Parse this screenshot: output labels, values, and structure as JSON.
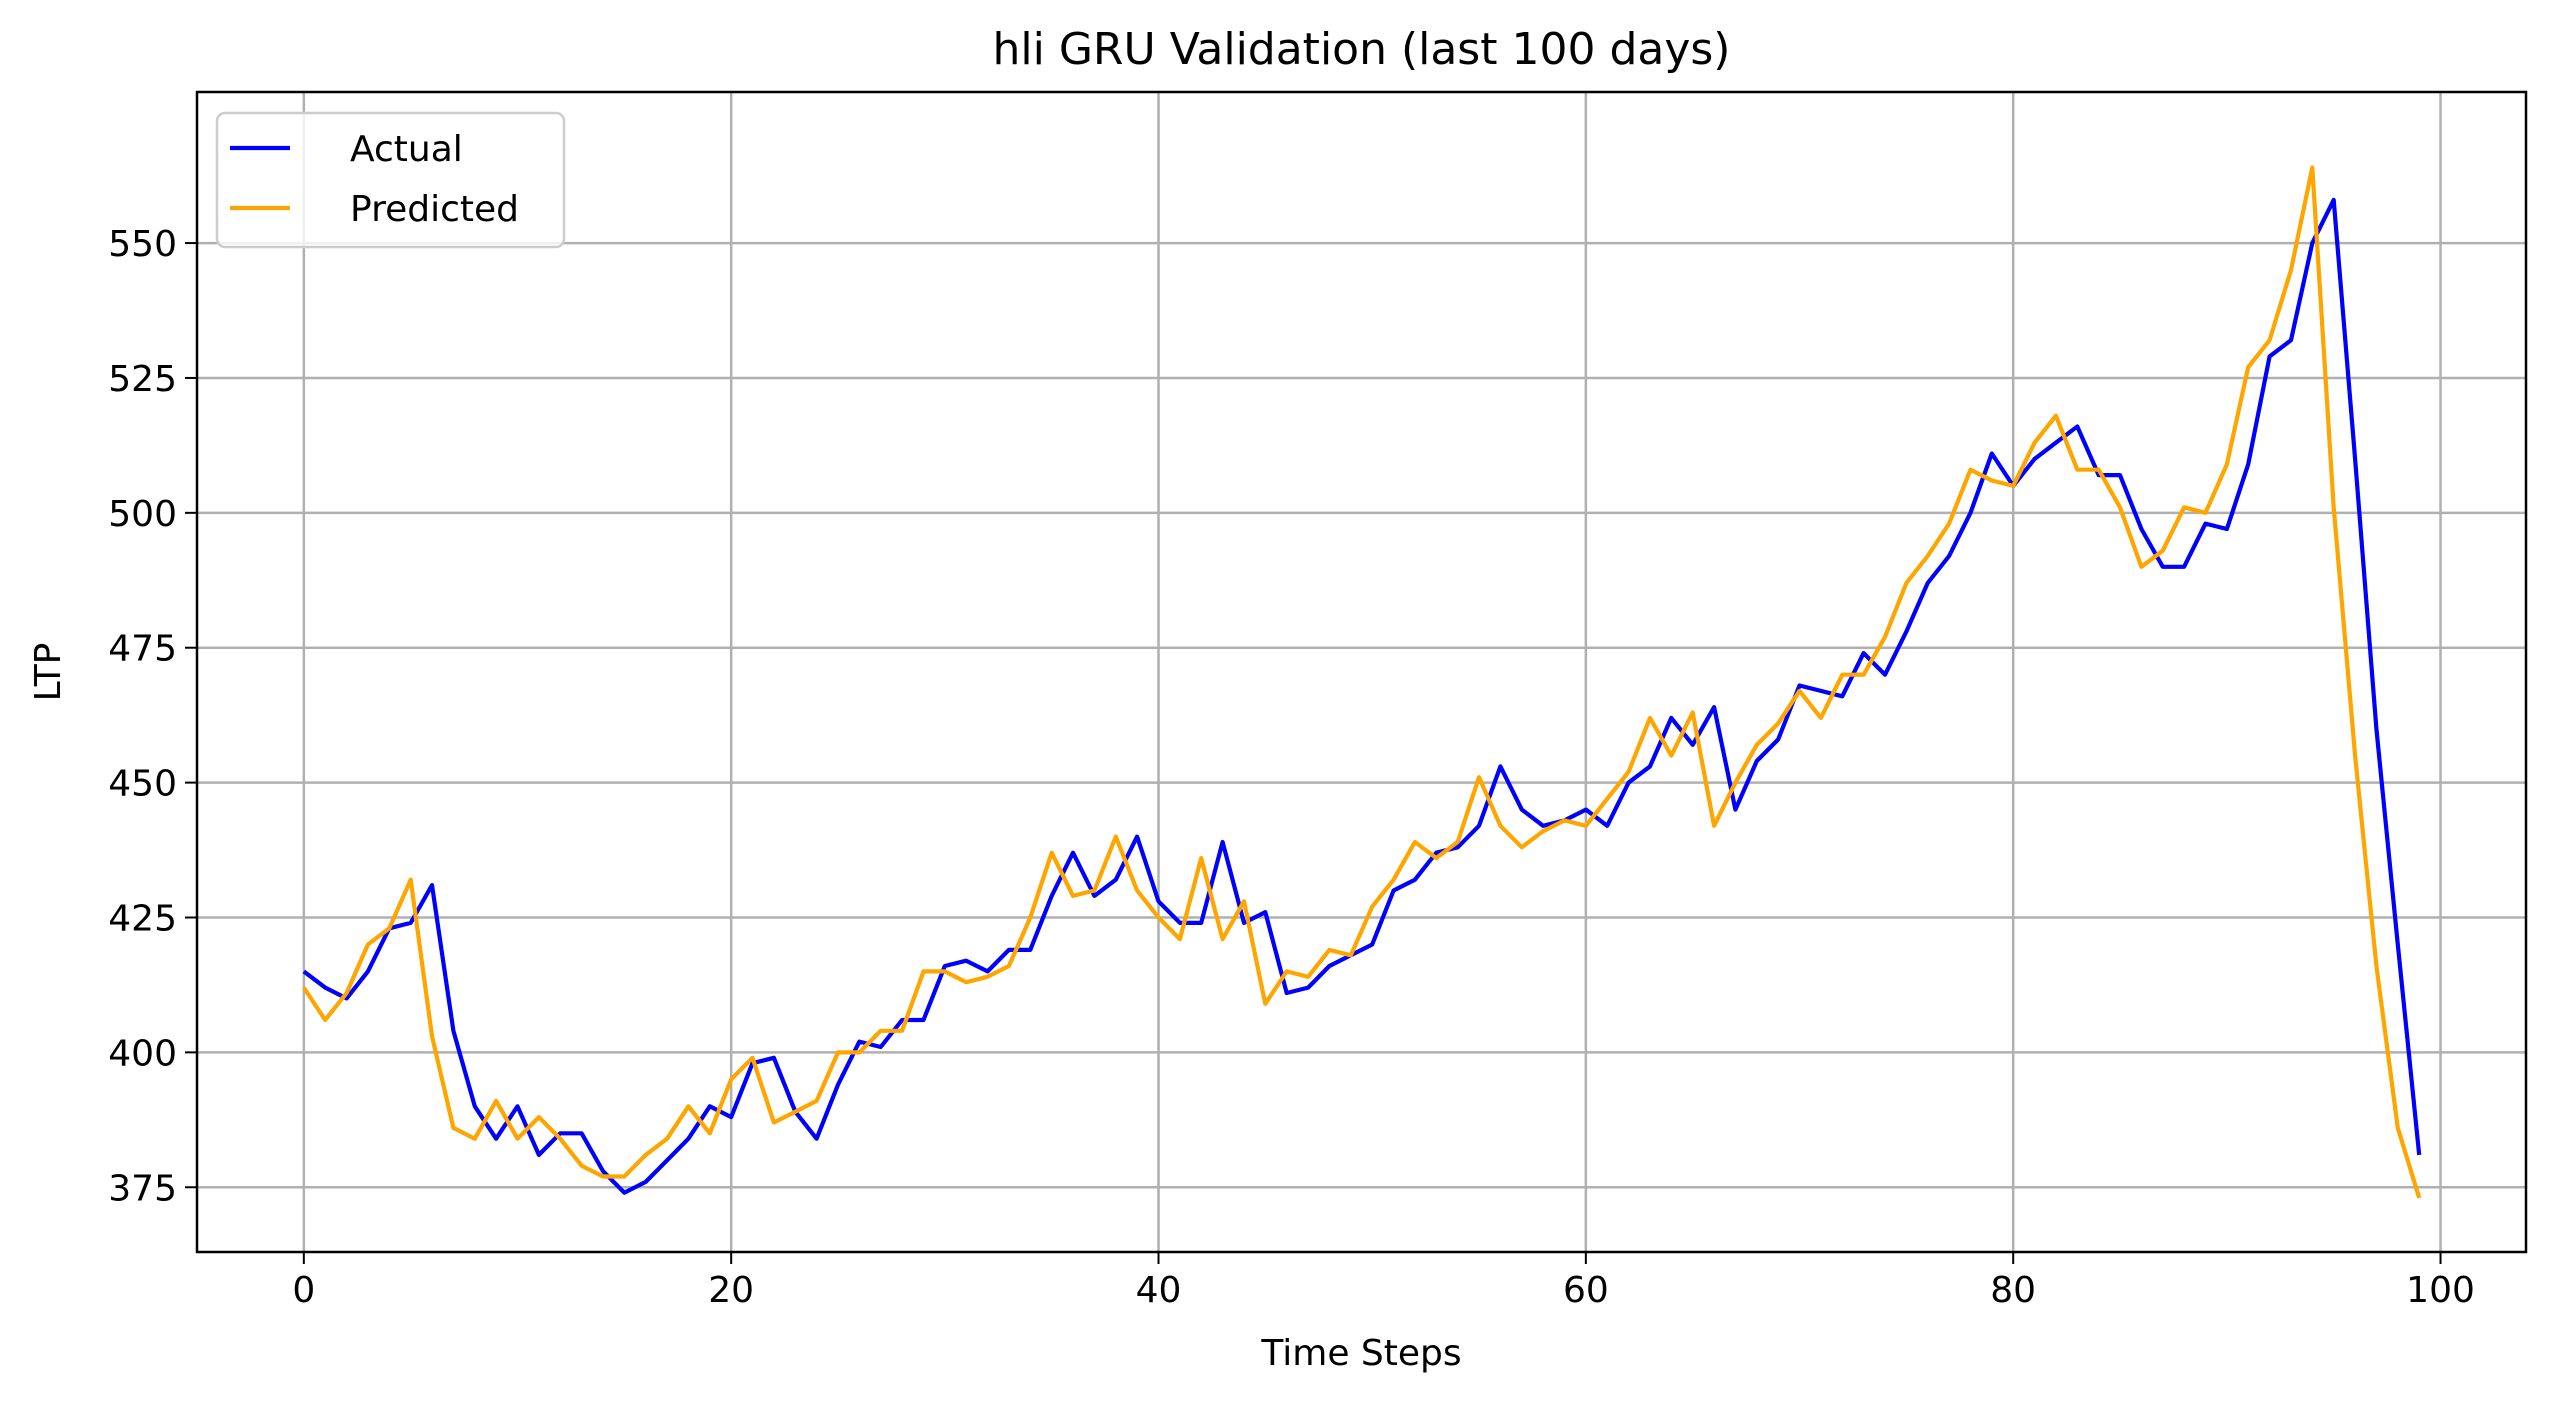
{
  "chart_data": {
    "type": "line",
    "title": "hli GRU Validation (last 100 days)",
    "xlabel": "Time Steps",
    "ylabel": "LTP",
    "xlim": [
      -5,
      104
    ],
    "ylim": [
      363,
      578
    ],
    "xticks": [
      0,
      20,
      40,
      60,
      80,
      100
    ],
    "yticks": [
      375,
      400,
      425,
      450,
      475,
      500,
      525,
      550
    ],
    "grid": true,
    "legend_position": "upper-left",
    "x": [
      0,
      1,
      2,
      3,
      4,
      5,
      6,
      7,
      8,
      9,
      10,
      11,
      12,
      13,
      14,
      15,
      16,
      17,
      18,
      19,
      20,
      21,
      22,
      23,
      24,
      25,
      26,
      27,
      28,
      29,
      30,
      31,
      32,
      33,
      34,
      35,
      36,
      37,
      38,
      39,
      40,
      41,
      42,
      43,
      44,
      45,
      46,
      47,
      48,
      49,
      50,
      51,
      52,
      53,
      54,
      55,
      56,
      57,
      58,
      59,
      60,
      61,
      62,
      63,
      64,
      65,
      66,
      67,
      68,
      69,
      70,
      71,
      72,
      73,
      74,
      75,
      76,
      77,
      78,
      79,
      80,
      81,
      82,
      83,
      84,
      85,
      86,
      87,
      88,
      89,
      90,
      91,
      92,
      93,
      94,
      95,
      96,
      97,
      98,
      99
    ],
    "series": [
      {
        "name": "Actual",
        "color": "#0000ff",
        "values": [
          415,
          412,
          410,
          415,
          423,
          424,
          431,
          404,
          390,
          384,
          390,
          381,
          385,
          385,
          378,
          374,
          376,
          380,
          384,
          390,
          388,
          398,
          399,
          389,
          384,
          394,
          402,
          401,
          406,
          406,
          416,
          417,
          415,
          419,
          419,
          429,
          437,
          429,
          432,
          440,
          428,
          424,
          424,
          439,
          424,
          426,
          411,
          412,
          416,
          418,
          420,
          430,
          432,
          437,
          438,
          442,
          453,
          445,
          442,
          443,
          445,
          442,
          450,
          453,
          462,
          457,
          464,
          445,
          454,
          458,
          468,
          467,
          466,
          474,
          470,
          478,
          487,
          492,
          500,
          511,
          505,
          510,
          513,
          516,
          507,
          507,
          497,
          490,
          490,
          498,
          497,
          509,
          529,
          532,
          550,
          558,
          510,
          460,
          420,
          381
        ]
      },
      {
        "name": "Predicted",
        "color": "#ffa500",
        "values": [
          412,
          406,
          411,
          420,
          423,
          432,
          403,
          386,
          384,
          391,
          384,
          388,
          384,
          379,
          377,
          377,
          381,
          384,
          390,
          385,
          395,
          399,
          387,
          389,
          391,
          400,
          400,
          404,
          404,
          415,
          415,
          413,
          414,
          416,
          425,
          437,
          429,
          430,
          440,
          430,
          425,
          421,
          436,
          421,
          428,
          409,
          415,
          414,
          419,
          418,
          427,
          432,
          439,
          436,
          439,
          451,
          442,
          438,
          441,
          443,
          442,
          447,
          452,
          462,
          455,
          463,
          442,
          450,
          457,
          461,
          467,
          462,
          470,
          470,
          477,
          487,
          492,
          498,
          508,
          506,
          505,
          513,
          518,
          508,
          508,
          501,
          490,
          493,
          501,
          500,
          509,
          527,
          532,
          545,
          564,
          501,
          455,
          416,
          386,
          373
        ]
      }
    ]
  }
}
